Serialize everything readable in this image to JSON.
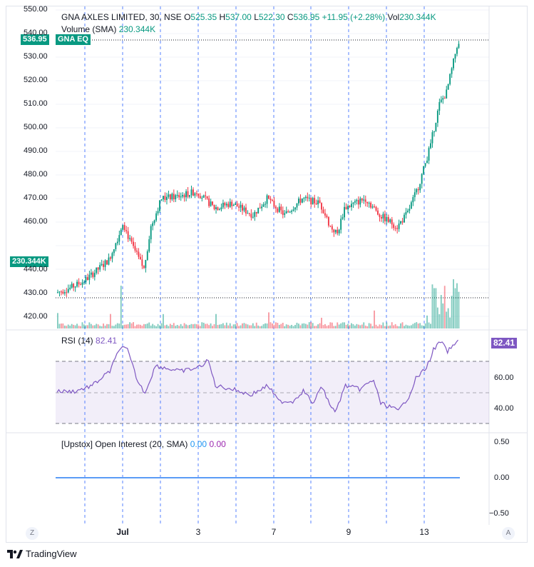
{
  "header": {
    "symbol": "GNA AXLES LIMITED, 30, NSE",
    "open_label": "O",
    "open": "525.35",
    "high_label": "H",
    "high": "537.00",
    "low_label": "L",
    "low": "522.30",
    "close_label": "C",
    "close": "536.95",
    "change": "+11.95 (+2.28%)",
    "vol_label": "Vol",
    "vol": "230.344K",
    "volume_study": "Volume (SMA)",
    "volume_value": "230.344K"
  },
  "price_tag": "536.95",
  "eq_tag": "GNA EQ",
  "volume_tag": "230.344K",
  "rsi": {
    "title": "RSI (14)",
    "value": "82.41",
    "tag": "82.41"
  },
  "oi": {
    "title": "[Upstox] Open Interest (20, SMA)",
    "value1": "0.00",
    "value2": "0.00"
  },
  "price_axis": [
    "550.00",
    "540.00",
    "530.00",
    "520.00",
    "510.00",
    "500.00",
    "490.00",
    "480.00",
    "470.00",
    "460.00",
    "440.00",
    "430.00",
    "420.00"
  ],
  "rsi_axis": [
    "60.00",
    "40.00"
  ],
  "oi_axis": [
    "0.50",
    "0.00",
    "−0.50"
  ],
  "x_labels": [
    "Jul",
    "3",
    "7",
    "9",
    "13"
  ],
  "corner_left": "Z",
  "corner_right": "A",
  "brand": "TradingView",
  "colors": {
    "up": "#089981",
    "down": "#f23645",
    "rsi": "#7e57c2",
    "oi": "#5b9cf6",
    "session": "#2962ff"
  }
}
